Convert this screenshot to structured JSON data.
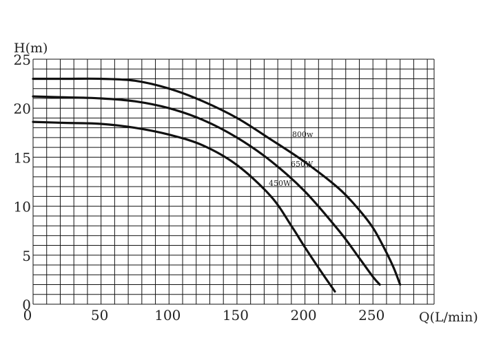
{
  "chart_data": {
    "type": "line",
    "xlabel": "Q(L/min)",
    "ylabel": "H(m)",
    "xlim": [
      0,
      285
    ],
    "ylim": [
      0,
      25
    ],
    "x_ticks": [
      {
        "value": 0,
        "label": "0"
      },
      {
        "value": 50,
        "label": "50"
      },
      {
        "value": 100,
        "label": "100"
      },
      {
        "value": 150,
        "label": "150"
      },
      {
        "value": 200,
        "label": "200"
      },
      {
        "value": 250,
        "label": "250"
      }
    ],
    "y_ticks": [
      {
        "value": 0,
        "label": "0"
      },
      {
        "value": 5,
        "label": "5"
      },
      {
        "value": 10,
        "label": "10"
      },
      {
        "value": 15,
        "label": "15"
      },
      {
        "value": 20,
        "label": "20"
      },
      {
        "value": 25,
        "label": "25"
      }
    ],
    "grid": true,
    "series": [
      {
        "name": "800w",
        "x": [
          0,
          25,
          50,
          75,
          100,
          125,
          150,
          175,
          200,
          225,
          240,
          250,
          258,
          265,
          270
        ],
        "y": [
          23.0,
          23.0,
          23.0,
          22.8,
          22.0,
          20.7,
          19.0,
          16.8,
          14.5,
          11.8,
          9.6,
          7.8,
          5.8,
          3.8,
          2.0
        ]
      },
      {
        "name": "650W",
        "x": [
          0,
          25,
          50,
          75,
          100,
          125,
          150,
          175,
          200,
          225,
          240,
          250,
          255
        ],
        "y": [
          21.2,
          21.1,
          21.0,
          20.7,
          20.0,
          18.8,
          17.0,
          14.6,
          11.5,
          7.5,
          4.7,
          2.8,
          2.0
        ]
      },
      {
        "name": "450W",
        "x": [
          0,
          25,
          50,
          75,
          100,
          125,
          150,
          175,
          190,
          200,
          212,
          222
        ],
        "y": [
          18.6,
          18.5,
          18.4,
          18.0,
          17.3,
          16.2,
          14.2,
          11.0,
          8.0,
          5.8,
          3.3,
          1.3
        ]
      }
    ]
  }
}
